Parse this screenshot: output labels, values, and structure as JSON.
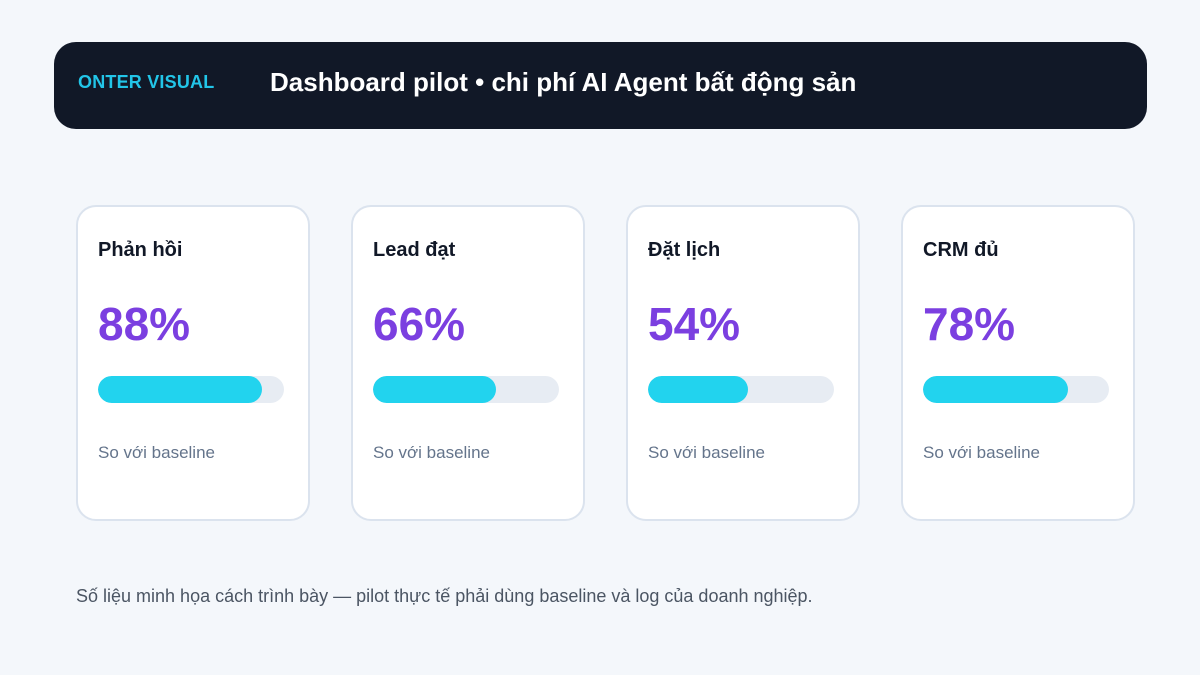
{
  "header": {
    "brand": "ONTER VISUAL",
    "title": "Dashboard pilot • chi phí AI Agent bất động sản"
  },
  "cards": [
    {
      "label": "Phản hồi",
      "value": "88%",
      "percent": 88,
      "note": "So với baseline"
    },
    {
      "label": "Lead đạt",
      "value": "66%",
      "percent": 66,
      "note": "So với baseline"
    },
    {
      "label": "Đặt lịch",
      "value": "54%",
      "percent": 54,
      "note": "So với baseline"
    },
    {
      "label": "CRM đủ",
      "value": "78%",
      "percent": 78,
      "note": "So với baseline"
    }
  ],
  "footnote": "Số liệu minh họa cách trình bày — pilot thực tế phải dùng baseline và log của doanh nghiệp.",
  "colors": {
    "header_bg": "#111827",
    "brand": "#22c5e8",
    "value": "#7b3fe0",
    "bar_fill": "#22d3ee",
    "bar_track": "#e7ecf3"
  }
}
